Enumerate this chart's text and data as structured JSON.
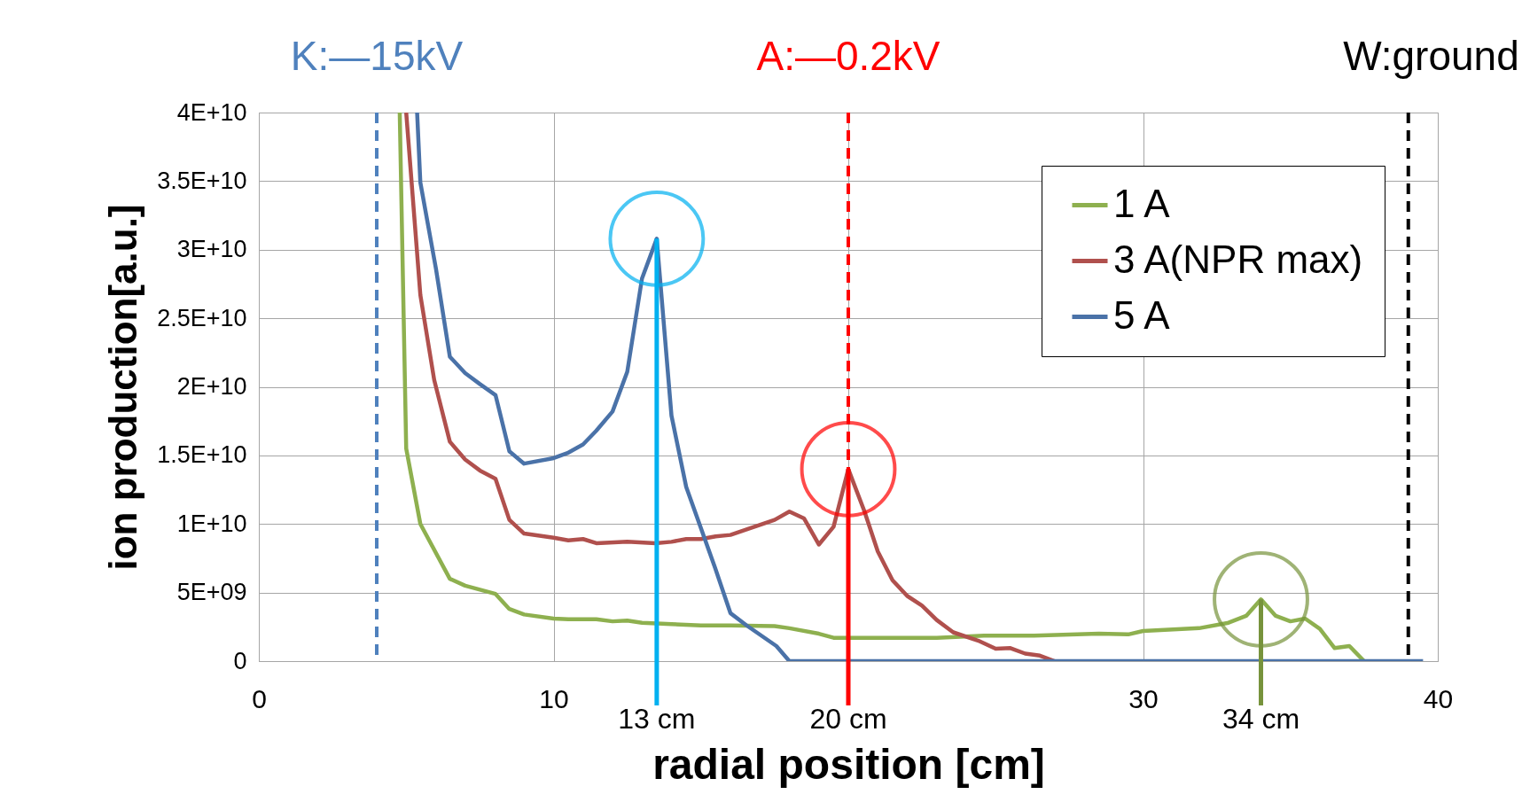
{
  "chart_data": {
    "type": "line",
    "xlabel": "radial position [cm]",
    "ylabel": "ion production[a.u.]",
    "xlim": [
      0,
      40
    ],
    "xticks": [
      0,
      10,
      {
        "value": 20,
        "label": null
      },
      30,
      40
    ],
    "ylim": [
      0,
      40000000000.0
    ],
    "yticks": [
      0,
      {
        "value": 5000000000.0,
        "label": "5E+09"
      },
      {
        "value": 10000000000.0,
        "label": "1E+10"
      },
      {
        "value": 15000000000.0,
        "label": "1.5E+10"
      },
      {
        "value": 20000000000.0,
        "label": "2E+10"
      },
      {
        "value": 25000000000.0,
        "label": "2.5E+10"
      },
      {
        "value": 30000000000.0,
        "label": "3E+10"
      },
      {
        "value": 35000000000.0,
        "label": "3.5E+10"
      },
      {
        "value": 40000000000.0,
        "label": "4E+10"
      }
    ],
    "grid": true,
    "legend": "top right",
    "line_style": "solid",
    "marker": "none",
    "series": [
      {
        "name": "1 A",
        "color": "#8eb04f",
        "x": [
          4.78,
          5.0,
          5.48,
          6.48,
          7.0,
          8.03,
          8.5,
          9.0,
          10.0,
          10.5,
          11.45,
          12.0,
          12.5,
          13.0,
          14.0,
          15.0,
          16.0,
          17.5,
          18.0,
          19.0,
          19.5,
          20.7,
          23.0,
          24.6,
          26.3,
          28.5,
          29.5,
          30.0,
          31.9,
          32.9,
          33.5,
          34.0,
          34.5,
          35.0,
          35.5,
          36.0,
          36.5,
          37.0,
          37.5
        ],
        "values": [
          40000000000.0,
          15500000000.0,
          10000000000.0,
          6000000000.0,
          5500000000.0,
          4900000000.0,
          3800000000.0,
          3400000000.0,
          3100000000.0,
          3050000000.0,
          3050000000.0,
          2900000000.0,
          2950000000.0,
          2800000000.0,
          2700000000.0,
          2600000000.0,
          2600000000.0,
          2550000000.0,
          2400000000.0,
          2000000000.0,
          1700000000.0,
          1700000000.0,
          1700000000.0,
          1850000000.0,
          1850000000.0,
          2000000000.0,
          1950000000.0,
          2200000000.0,
          2400000000.0,
          2800000000.0,
          3300000000.0,
          4500000000.0,
          3300000000.0,
          2900000000.0,
          3100000000.0,
          2350000000.0,
          950000000.0,
          1100000000.0,
          0
        ]
      },
      {
        "name": "3 A(NPR max)",
        "color": "#b0504d",
        "x": [
          5.0,
          5.48,
          5.95,
          6.48,
          7.0,
          7.5,
          8.03,
          8.5,
          9.0,
          10.0,
          10.5,
          11.0,
          11.45,
          12.5,
          13.46,
          14.0,
          14.5,
          15.0,
          15.5,
          16.0,
          16.55,
          17.5,
          18.0,
          18.5,
          19.0,
          19.5,
          20.0,
          20.55,
          21.0,
          21.5,
          22.0,
          22.5,
          23.0,
          23.56,
          24.4,
          25.0,
          25.5,
          26.0,
          26.5,
          27.0
        ],
        "values": [
          40000000000.0,
          26700000000.0,
          20500000000.0,
          16000000000.0,
          14700000000.0,
          13900000000.0,
          13300000000.0,
          10300000000.0,
          9300000000.0,
          9000000000.0,
          8800000000.0,
          8900000000.0,
          8600000000.0,
          8700000000.0,
          8600000000.0,
          8700000000.0,
          8900000000.0,
          8900000000.0,
          9100000000.0,
          9200000000.0,
          9600000000.0,
          10300000000.0,
          10900000000.0,
          10400000000.0,
          8500000000.0,
          9800000000.0,
          14000000000.0,
          10900000000.0,
          8000000000.0,
          5900000000.0,
          4750000000.0,
          4050000000.0,
          3000000000.0,
          2100000000.0,
          1500000000.0,
          900000000.0,
          950000000.0,
          550000000.0,
          400000000.0,
          0
        ]
      },
      {
        "name": "5 A",
        "color": "#4a72a8",
        "x": [
          5.37,
          5.48,
          6.01,
          6.48,
          7.0,
          7.5,
          8.03,
          8.5,
          9.0,
          10.0,
          10.5,
          11.0,
          11.45,
          12.0,
          12.5,
          13.0,
          13.5,
          14.0,
          14.5,
          15.0,
          15.48,
          16.0,
          16.55,
          17.56,
          18.0,
          39.5
        ],
        "values": [
          40000000000.0,
          34900000000.0,
          28600000000.0,
          22200000000.0,
          21000000000.0,
          20200000000.0,
          19400000000.0,
          15300000000.0,
          14400000000.0,
          14800000000.0,
          15200000000.0,
          15800000000.0,
          16800000000.0,
          18200000000.0,
          21100000000.0,
          27900000000.0,
          30800000000.0,
          17900000000.0,
          12700000000.0,
          9700000000.0,
          6800000000.0,
          3500000000.0,
          2600000000.0,
          1100000000.0,
          0,
          0
        ]
      }
    ],
    "ref_lines": [
      {
        "axis": "x",
        "value": 4,
        "label": "K:—15kV",
        "color": "#4f81bd",
        "line_style": "dashed"
      },
      {
        "axis": "x",
        "value": 20,
        "label": "A:—0.2kV",
        "color": "#ff0000",
        "line_style": "dashed"
      },
      {
        "axis": "x",
        "value": 39,
        "label": "W:ground",
        "color": "#000000",
        "line_style": "dashed"
      }
    ],
    "annotations": [
      {
        "text": "13 cm",
        "x": 13.5,
        "y": 30800000000.0
      },
      {
        "text": "20 cm",
        "x": 20.0,
        "y": 14000000000.0
      },
      {
        "text": "34 cm",
        "x": 34.0,
        "y": 4500000000.0
      }
    ]
  }
}
